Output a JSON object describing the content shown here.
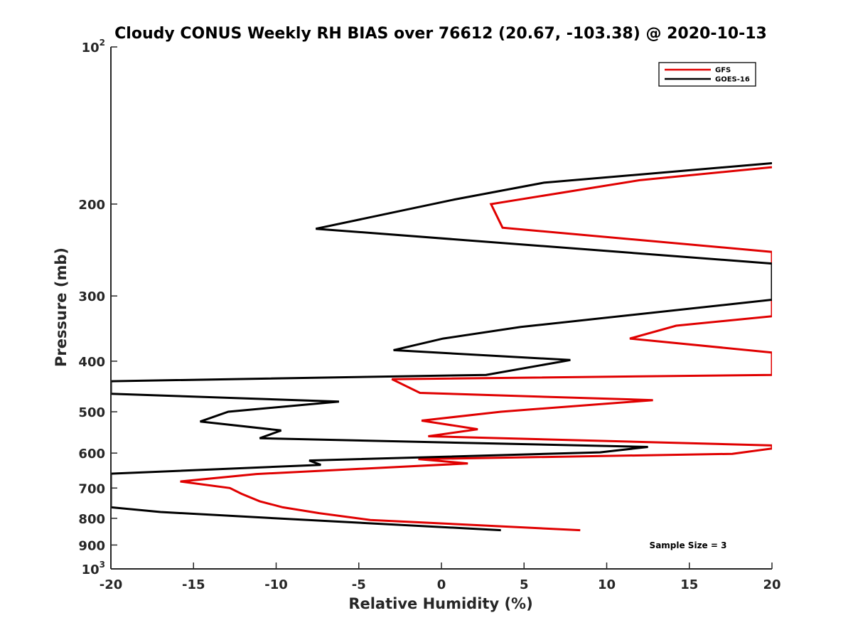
{
  "chart_data": {
    "type": "line",
    "title": "Cloudy CONUS Weekly RH BIAS over 76612 (20.67, -103.38) @ 2020-10-13",
    "xlabel": "Relative Humidity (%)",
    "ylabel": "Pressure (mb)",
    "xlim": [
      -20,
      20
    ],
    "ylim": [
      100,
      1000
    ],
    "yscale": "log",
    "y_reversed": true,
    "grid": false,
    "legend_position": "top-right",
    "x_ticks": [
      {
        "value": -20,
        "label": "-20"
      },
      {
        "value": -15,
        "label": "-15"
      },
      {
        "value": -10,
        "label": "-10"
      },
      {
        "value": -5,
        "label": "-5"
      },
      {
        "value": 0,
        "label": "0"
      },
      {
        "value": 5,
        "label": "5"
      },
      {
        "value": 10,
        "label": "10"
      },
      {
        "value": 15,
        "label": "15"
      },
      {
        "value": 20,
        "label": "20"
      }
    ],
    "y_ticks": [
      {
        "value": 100,
        "base": "10",
        "exp": "2"
      },
      {
        "value": 200,
        "base": "200",
        "exp": ""
      },
      {
        "value": 300,
        "base": "300",
        "exp": ""
      },
      {
        "value": 400,
        "base": "400",
        "exp": ""
      },
      {
        "value": 500,
        "base": "500",
        "exp": ""
      },
      {
        "value": 600,
        "base": "600",
        "exp": ""
      },
      {
        "value": 700,
        "base": "700",
        "exp": ""
      },
      {
        "value": 800,
        "base": "800",
        "exp": ""
      },
      {
        "value": 900,
        "base": "900",
        "exp": ""
      },
      {
        "value": 1000,
        "base": "10",
        "exp": "3"
      }
    ],
    "series": [
      {
        "name": "GFS",
        "color": "#e00000",
        "points": [
          [
            20,
            170
          ],
          [
            12,
            180
          ],
          [
            3,
            200
          ],
          [
            3.7,
            222
          ],
          [
            20,
            247
          ],
          [
            20,
            328
          ],
          [
            14.2,
            342
          ],
          [
            11.4,
            362
          ],
          [
            20,
            385
          ],
          [
            20,
            425
          ],
          [
            -3,
            433
          ],
          [
            -1.3,
            460
          ],
          [
            12.8,
            475
          ],
          [
            3.6,
            500
          ],
          [
            -1.2,
            520
          ],
          [
            2.2,
            540
          ],
          [
            -0.8,
            557
          ],
          [
            20,
            580
          ],
          [
            20,
            588
          ],
          [
            17.6,
            602
          ],
          [
            -1.4,
            616
          ],
          [
            1.6,
            628
          ],
          [
            -11.2,
            658
          ],
          [
            -15.8,
            680
          ],
          [
            -12.8,
            700
          ],
          [
            -12.1,
            718
          ],
          [
            -11,
            742
          ],
          [
            -9.6,
            762
          ],
          [
            -7.4,
            782
          ],
          [
            -4.3,
            806
          ],
          [
            8.4,
            843
          ]
        ]
      },
      {
        "name": "GOES-16",
        "color": "#000000",
        "points": [
          [
            20,
            167
          ],
          [
            6.2,
            182
          ],
          [
            0.8,
            196
          ],
          [
            -7.6,
            223
          ],
          [
            20,
            260
          ],
          [
            20,
            305
          ],
          [
            4.8,
            344
          ],
          [
            0.1,
            362
          ],
          [
            -2.9,
            381
          ],
          [
            7.8,
            398
          ],
          [
            2.7,
            425
          ],
          [
            -20,
            437
          ],
          [
            -20,
            462
          ],
          [
            -6.2,
            478
          ],
          [
            -12.9,
            500
          ],
          [
            -14.6,
            522
          ],
          [
            -9.7,
            543
          ],
          [
            -11.0,
            562
          ],
          [
            12.5,
            584
          ],
          [
            9.6,
            598
          ],
          [
            -8,
            620
          ],
          [
            -7.3,
            632
          ],
          [
            -20,
            657
          ],
          [
            -20,
            762
          ],
          [
            -17,
            778
          ],
          [
            -10,
            800
          ],
          [
            3.6,
            843
          ]
        ]
      }
    ],
    "annotations": [
      "Sample Size = 3"
    ]
  }
}
